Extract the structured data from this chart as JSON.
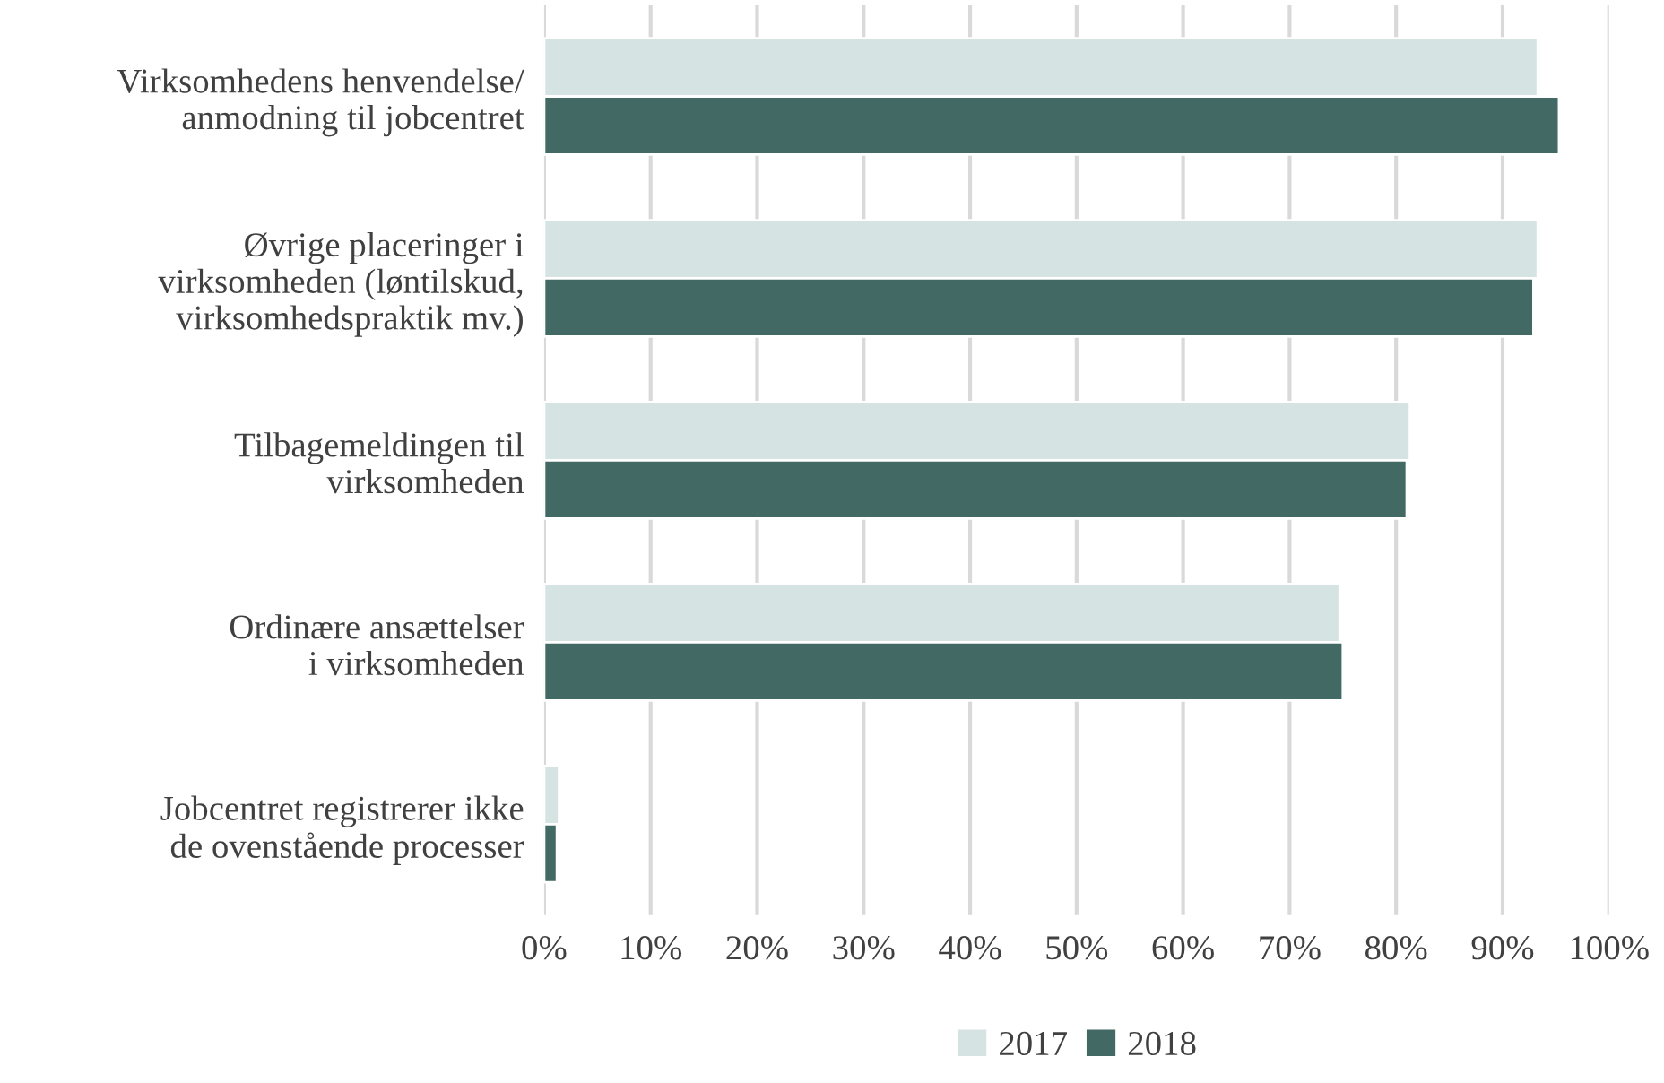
{
  "chart_data": {
    "type": "bar",
    "orientation": "horizontal",
    "categories": [
      "Virksomhedens henvendelse/\nanmodning til jobcentret",
      "Øvrige placeringer i\nvirksomheden (løntilskud,\nvirksomhedspraktik mv.)",
      "Tilbagemeldingen til\nvirksomheden",
      "Ordinære ansættelser\ni virksomheden",
      "Jobcentret registrerer ikke\nde ovenstående processer"
    ],
    "series": [
      {
        "name": "2017",
        "color": "#d6e3e3",
        "values": [
          93.3,
          93.3,
          81.3,
          74.7,
          1.4
        ]
      },
      {
        "name": "2018",
        "color": "#436965",
        "values": [
          95.3,
          92.9,
          81.0,
          75.0,
          1.2
        ]
      }
    ],
    "xlim": [
      0,
      100
    ],
    "xticks": [
      {
        "value": 0,
        "label": "0%"
      },
      {
        "value": 10,
        "label": "10%"
      },
      {
        "value": 20,
        "label": "20%"
      },
      {
        "value": 30,
        "label": "30%"
      },
      {
        "value": 40,
        "label": "40%"
      },
      {
        "value": 50,
        "label": "50%"
      },
      {
        "value": 60,
        "label": "60%"
      },
      {
        "value": 70,
        "label": "70%"
      },
      {
        "value": 80,
        "label": "80%"
      },
      {
        "value": 90,
        "label": "90%"
      },
      {
        "value": 100,
        "label": "100%"
      }
    ],
    "grid": "x",
    "legend": "bottom"
  }
}
